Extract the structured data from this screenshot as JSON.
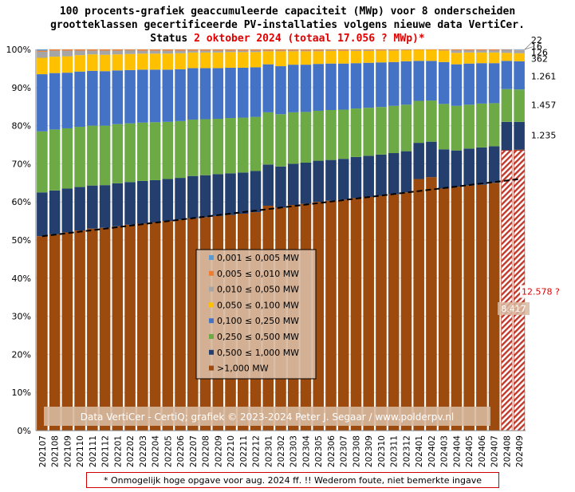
{
  "title": {
    "line1": "100 procents-grafiek geaccumuleerde capaciteit (MWp) voor 8 onderscheiden",
    "line2": "grootteklassen gecertificeerde PV-installaties volgens nieuwe data VertiCer.",
    "line3_prefix": "Status ",
    "line3_red": "2 oktober 2024 (totaal 17.056 ? MWp)*"
  },
  "footnote": "* Onmogelijk hoge opgave voor aug. 2024 ff. !! Wederom foute, niet bemerkte ingave",
  "credit": "Data VertiCer - CertiQ; grafiek © 2023-2024 Peter J. Segaar / www.polderpv.nl",
  "colors": {
    "gt1": "#9c4a0e",
    "c0510": "#243f6e",
    "c02505": "#6daa45",
    "c01025": "#4472c4",
    "c00501": "#ffc000",
    "c001005": "#a5a5a5",
    "c0005001": "#ed7d31",
    "c0001005": "#5b9bd5",
    "gt1_bogus": "#c0392b",
    "trend": "#000000",
    "grid": "#d9d9d9"
  },
  "chart_data": {
    "type": "bar",
    "stacked": "percent",
    "categories": [
      "202107",
      "202108",
      "202109",
      "202110",
      "202111",
      "202112",
      "202201",
      "202202",
      "202203",
      "202204",
      "202205",
      "202206",
      "202207",
      "202208",
      "202209",
      "202210",
      "202211",
      "202212",
      "202301",
      "202302",
      "202303",
      "202304",
      "202305",
      "202306",
      "202307",
      "202308",
      "202309",
      "202310",
      "202311",
      "202312",
      "202401",
      "202402",
      "202403",
      "202404",
      "202405",
      "202406",
      "202407",
      "202408",
      "202409"
    ],
    "ylim": [
      0,
      100
    ],
    "yticks": [
      "0%",
      "10%",
      "20%",
      "30%",
      "40%",
      "50%",
      "60%",
      "70%",
      "80%",
      "90%",
      "100%"
    ],
    "series": [
      {
        "name": ">1,000 MW",
        "color_key": "gt1",
        "values": [
          51.0,
          51.5,
          52.0,
          52.5,
          53.0,
          53.2,
          53.6,
          54.0,
          54.3,
          54.6,
          55.0,
          55.3,
          55.7,
          56.0,
          56.3,
          56.6,
          56.9,
          57.3,
          59.0,
          58.5,
          59.2,
          59.5,
          60.0,
          60.3,
          60.6,
          61.0,
          61.3,
          61.6,
          62.0,
          62.5,
          66.0,
          66.5,
          63.5,
          64.0,
          64.3,
          64.5,
          65.0,
          73.5,
          73.7
        ]
      },
      {
        "name": "0,500 ≤ 1,000 MW",
        "color_key": "c0510",
        "values": [
          11.5,
          11.5,
          11.5,
          11.4,
          11.3,
          11.2,
          11.3,
          11.2,
          11.2,
          11.1,
          11.0,
          11.0,
          11.1,
          11.0,
          11.0,
          10.9,
          10.8,
          10.8,
          10.8,
          10.8,
          10.8,
          10.8,
          10.8,
          10.7,
          10.7,
          10.8,
          10.8,
          10.8,
          10.8,
          10.8,
          9.5,
          9.3,
          10.3,
          9.5,
          9.7,
          9.8,
          9.6,
          7.5,
          7.3
        ]
      },
      {
        "name": "0,250 ≤ 0,500 MW",
        "color_key": "c02505",
        "values": [
          16.0,
          16.0,
          15.8,
          15.8,
          15.7,
          15.6,
          15.5,
          15.4,
          15.3,
          15.2,
          15.0,
          14.9,
          14.8,
          14.7,
          14.5,
          14.5,
          14.4,
          14.2,
          13.7,
          13.7,
          13.5,
          13.3,
          13.1,
          13.1,
          12.9,
          12.7,
          12.6,
          12.5,
          12.4,
          12.2,
          11.0,
          10.8,
          11.9,
          11.7,
          11.5,
          11.5,
          11.3,
          8.6,
          8.5
        ]
      },
      {
        "name": "0,100 ≤ 0,250 MW",
        "color_key": "c01025",
        "values": [
          15.0,
          14.8,
          14.6,
          14.5,
          14.4,
          14.3,
          14.1,
          14.0,
          13.9,
          13.8,
          13.7,
          13.6,
          13.5,
          13.4,
          13.3,
          13.2,
          13.1,
          13.0,
          12.6,
          12.6,
          12.5,
          12.4,
          12.3,
          12.2,
          12.1,
          11.9,
          11.8,
          11.7,
          11.5,
          11.4,
          10.5,
          10.4,
          11.0,
          10.9,
          10.8,
          10.6,
          10.5,
          7.4,
          7.4
        ]
      },
      {
        "name": "0,050 ≤ 0,100 MW",
        "color_key": "c00501",
        "values": [
          4.3,
          4.3,
          4.3,
          4.3,
          4.3,
          4.3,
          4.2,
          4.2,
          4.2,
          4.2,
          4.2,
          4.2,
          4.1,
          4.1,
          4.1,
          4.1,
          4.1,
          4.0,
          3.4,
          3.9,
          3.5,
          3.5,
          3.3,
          3.3,
          3.3,
          3.2,
          3.1,
          3.1,
          3.0,
          2.9,
          2.9,
          2.9,
          3.0,
          3.0,
          2.9,
          2.8,
          2.8,
          2.1,
          2.1
        ]
      },
      {
        "name": "0,010 ≤ 0,050 MW",
        "color_key": "c001005",
        "values": [
          1.6,
          1.6,
          1.5,
          1.2,
          1.0,
          1.1,
          1.0,
          1.0,
          0.8,
          0.8,
          0.8,
          0.7,
          0.5,
          0.5,
          0.5,
          0.4,
          0.4,
          0.4,
          0.2,
          0.2,
          0.2,
          0.2,
          0.2,
          0.2,
          0.1,
          0.2,
          0.2,
          0.1,
          0.1,
          0.1,
          0.0,
          0.0,
          0.1,
          0.7,
          0.6,
          0.6,
          0.6,
          0.7,
          0.74
        ]
      },
      {
        "name": "0,005 ≤ 0,010 MW",
        "color_key": "c0005001",
        "values": [
          0.3,
          0.3,
          0.3,
          0.3,
          0.3,
          0.3,
          0.3,
          0.2,
          0.3,
          0.3,
          0.3,
          0.3,
          0.3,
          0.3,
          0.3,
          0.3,
          0.3,
          0.3,
          0.3,
          0.3,
          0.3,
          0.3,
          0.3,
          0.2,
          0.3,
          0.2,
          0.2,
          0.2,
          0.2,
          0.1,
          0.1,
          0.1,
          0.2,
          0.2,
          0.2,
          0.2,
          0.2,
          0.1,
          0.09
        ]
      },
      {
        "name": "0,001 ≤ 0,005 MW",
        "color_key": "c0001005",
        "values": [
          0.3,
          0.0,
          0.0,
          0.0,
          0.0,
          0.0,
          0.0,
          0.0,
          0.0,
          0.0,
          0.0,
          0.0,
          0.0,
          0.0,
          0.0,
          0.0,
          0.0,
          0.0,
          0.0,
          0.0,
          0.0,
          0.0,
          0.0,
          0.0,
          0.0,
          0.0,
          0.0,
          0.0,
          0.0,
          0.0,
          0.0,
          0.0,
          0.0,
          0.0,
          0.0,
          0.0,
          0.0,
          0.1,
          0.13
        ]
      }
    ],
    "bogus_segment": {
      "categories": [
        "202408",
        "202409"
      ],
      "from": 0,
      "to": 73.5,
      "label": "12.578 ?"
    },
    "trendline": {
      "from": [
        0,
        51.0
      ],
      "to": [
        38,
        66.0
      ]
    },
    "labels_last_bar": [
      {
        "text": "8.417",
        "y": 32.0
      },
      {
        "text": "12.578 ?",
        "y": 36.5
      },
      {
        "text": "1.235",
        "y": 77.5
      },
      {
        "text": "1.457",
        "y": 85.5
      },
      {
        "text": "1.261",
        "y": 93.0
      },
      {
        "text": "362",
        "y": 97.6
      },
      {
        "text": "126",
        "y": 99.3
      },
      {
        "text": "16",
        "y": 100.8
      },
      {
        "text": "22",
        "y": 102.5
      }
    ],
    "legend_placement": "center"
  }
}
